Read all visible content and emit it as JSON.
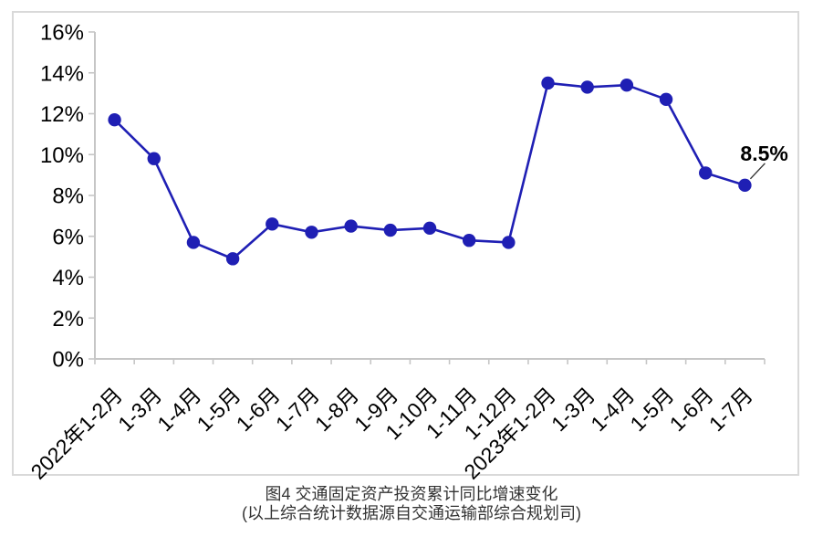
{
  "figure": {
    "caption_line1": "图4  交通固定资产投资累计同比增速变化",
    "caption_line2": "(以上综合统计数据源自交通运输部综合规划司)"
  },
  "chart_data": {
    "type": "line",
    "title": "图4 交通固定资产投资累计同比增速变化",
    "categories": [
      "2022年1-2月",
      "1-3月",
      "1-4月",
      "1-5月",
      "1-6月",
      "1-7月",
      "1-8月",
      "1-9月",
      "1-10月",
      "1-11月",
      "1-12月",
      "2023年1-2月",
      "1-3月",
      "1-4月",
      "1-5月",
      "1-6月",
      "1-7月"
    ],
    "series": [
      {
        "name": "交通固定资产投资累计同比增速",
        "values": [
          11.7,
          9.8,
          5.7,
          4.9,
          6.6,
          6.2,
          6.5,
          6.3,
          6.4,
          5.8,
          5.7,
          13.5,
          13.3,
          13.4,
          12.7,
          9.1,
          8.5
        ]
      }
    ],
    "ylim": [
      0,
      16
    ],
    "ytick_values": [
      0,
      2,
      4,
      6,
      8,
      10,
      12,
      14,
      16
    ],
    "ytick_suffix": "%",
    "grid": false,
    "legend_position": "none",
    "annotation": {
      "text": "8.5%",
      "point_index": 16
    },
    "colors": {
      "line": "#1f1fb4",
      "marker": "#1f1fb4",
      "axis": "#c6c6c6",
      "tick_label": "#000000",
      "annotation_text": "#000000",
      "annotation_leader": "#333333",
      "figure_border": "#d9d9d9"
    }
  }
}
